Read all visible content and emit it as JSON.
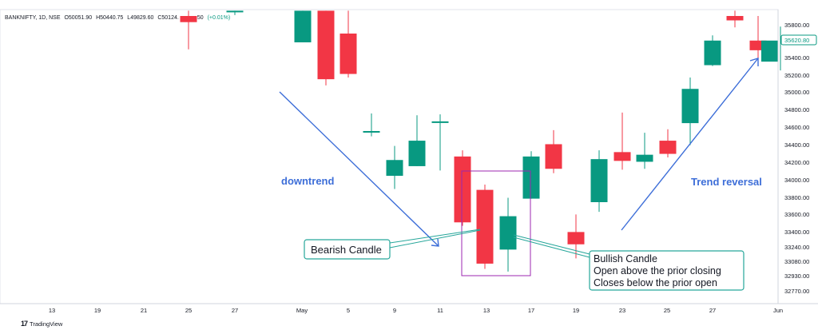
{
  "header": {
    "symbol": "BANKNIFTY, 1D, NSE",
    "open": "O50051.90",
    "high": "H50440.75",
    "low": "L49829.60",
    "close": "C50124.",
    "close_tail": "50",
    "change": "(+0.01%)"
  },
  "branding": {
    "name": "TradingView"
  },
  "colors": {
    "bullish": "#089981",
    "bearish": "#f23645",
    "annotation_arrow": "#3d6ed8",
    "callout_border": "#26a69a",
    "highlight_box": "#9c27b0",
    "annotation_text": "#3d6ed8"
  },
  "price_badge": "35620.80",
  "annotations": {
    "downtrend": "downtrend",
    "trend_reversal": "Trend reversal",
    "bearish_callout": "Bearish Candle",
    "bullish_callout": [
      "Bullish Candle",
      "Open above the prior closing",
      "Closes below the prior open"
    ]
  },
  "chart_data": {
    "type": "candlestick",
    "y_axis": {
      "ticks": [
        35800,
        35600,
        35400,
        35200,
        35000,
        34800,
        34600,
        34400,
        34200,
        34000,
        33800,
        33600,
        33400,
        33240,
        33080,
        32930,
        32770
      ],
      "labels": [
        "35800.00",
        "35600.00",
        "35400.00",
        "35200.00",
        "35000.00",
        "34800.00",
        "34600.00",
        "34400.00",
        "34200.00",
        "34000.00",
        "33800.00",
        "33600.00",
        "33400.00",
        "33240.00",
        "33080.00",
        "32930.00",
        "32770.00"
      ]
    },
    "x_axis": {
      "labels": [
        "13",
        "19",
        "21",
        "25",
        "27",
        "May",
        "5",
        "9",
        "11",
        "13",
        "17",
        "19",
        "23",
        "25",
        "27",
        "Jun"
      ]
    },
    "candles": [
      {
        "o": 35900,
        "h": 35960,
        "l": 35520,
        "c": 35830
      },
      {
        "o": 35960,
        "h": 35960,
        "l": 35910,
        "c": 35960
      },
      {
        "o": 35600,
        "h": 35960,
        "l": 35600,
        "c": 35960
      },
      {
        "o": 35960,
        "h": 35960,
        "l": 35110,
        "c": 35180
      },
      {
        "o": 35700,
        "h": 35960,
        "l": 35200,
        "c": 35240
      },
      {
        "o": 34580,
        "h": 34790,
        "l": 34530,
        "c": 34590
      },
      {
        "o": 34080,
        "h": 34420,
        "l": 33930,
        "c": 34260
      },
      {
        "o": 34190,
        "h": 34770,
        "l": 34190,
        "c": 34480
      },
      {
        "o": 34700,
        "h": 34780,
        "l": 34140,
        "c": 34700
      },
      {
        "o": 34300,
        "h": 34370,
        "l": 33510,
        "c": 33550
      },
      {
        "o": 33920,
        "h": 33980,
        "l": 33020,
        "c": 33080
      },
      {
        "o": 33240,
        "h": 33830,
        "l": 32990,
        "c": 33620
      },
      {
        "o": 33820,
        "h": 34360,
        "l": 33820,
        "c": 34300
      },
      {
        "o": 34440,
        "h": 34600,
        "l": 34110,
        "c": 34160
      },
      {
        "o": 33440,
        "h": 33640,
        "l": 33140,
        "c": 33300
      },
      {
        "o": 33780,
        "h": 34370,
        "l": 33670,
        "c": 34270
      },
      {
        "o": 34350,
        "h": 34800,
        "l": 34150,
        "c": 34250
      },
      {
        "o": 34240,
        "h": 34570,
        "l": 34160,
        "c": 34320
      },
      {
        "o": 34480,
        "h": 34610,
        "l": 34290,
        "c": 34330
      },
      {
        "o": 34680,
        "h": 35200,
        "l": 34430,
        "c": 35070
      },
      {
        "o": 35340,
        "h": 35680,
        "l": 35330,
        "c": 35620
      },
      {
        "o": 35900,
        "h": 35960,
        "l": 35770,
        "c": 35850
      },
      {
        "o": 35620,
        "h": 35900,
        "l": 35400,
        "c": 35510
      },
      {
        "o": 35380,
        "h": 35780,
        "l": 35280,
        "c": 35620
      }
    ]
  }
}
